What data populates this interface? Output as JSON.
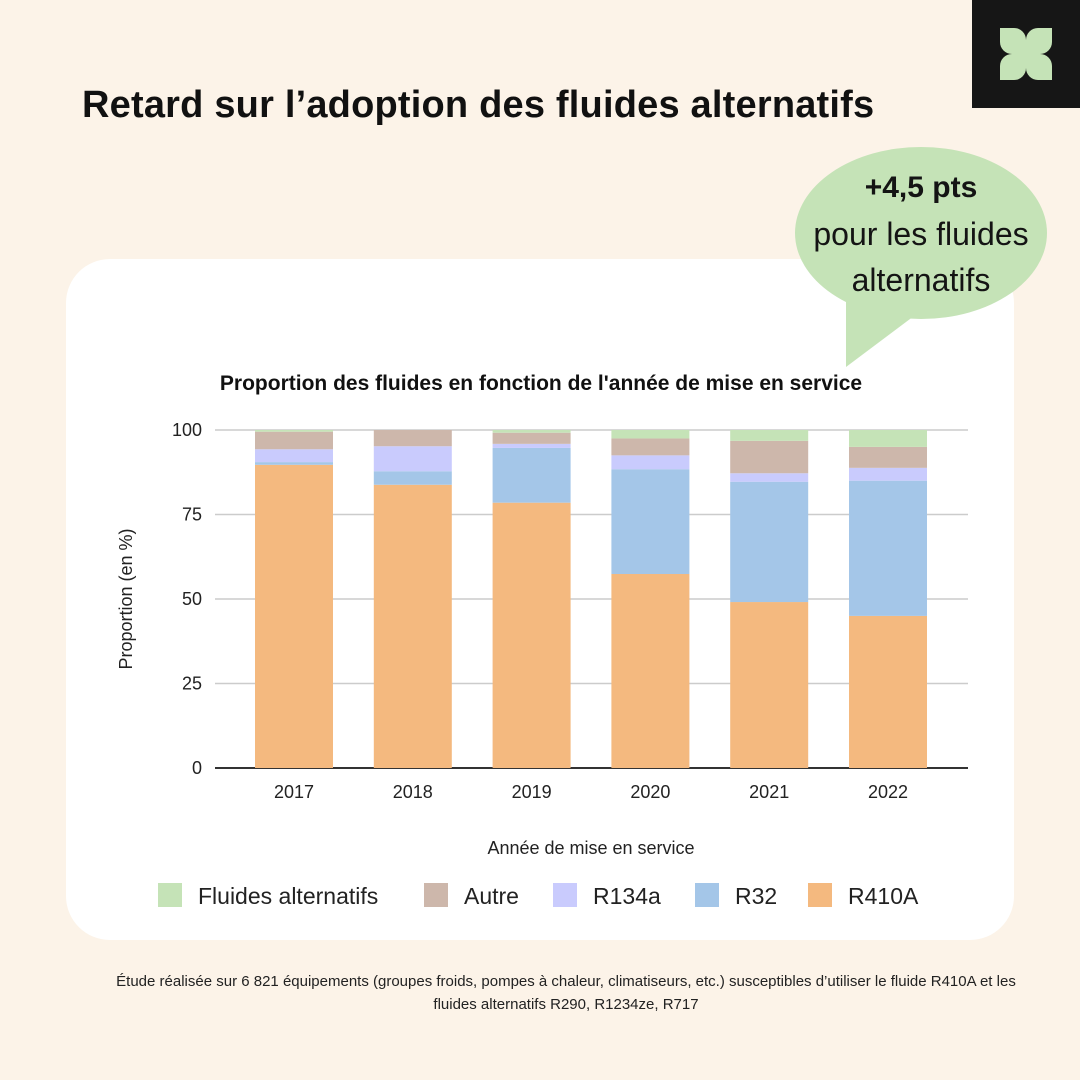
{
  "headline": "Retard sur l’adoption des fluides alternatifs",
  "logo": {
    "icon": "clover-logo-icon",
    "color": "#c5e3b7"
  },
  "bubble": {
    "big": "+4,5 pts",
    "line1": "pour les fluides",
    "line2": "alternatifs",
    "color": "#c5e3b7"
  },
  "footnote": "Étude réalisée sur 6 821 équipements (groupes froids, pompes à chaleur, climatiseurs, etc.) susceptibles d’utiliser le fluide R410A et les fluides alternatifs R290, R1234ze, R717",
  "chart_data": {
    "type": "bar",
    "stacked": true,
    "title": "Proportion des fluides en fonction de l'année de mise en service",
    "xlabel": "Année de mise en service",
    "ylabel": "Proportion (en %)",
    "ylim": [
      0,
      100
    ],
    "yticks": [
      0,
      25,
      50,
      75,
      100
    ],
    "grid": true,
    "legend_position": "bottom",
    "categories": [
      "2017",
      "2018",
      "2019",
      "2020",
      "2021",
      "2022"
    ],
    "series": [
      {
        "name": "R410A",
        "color": "#f4b97f",
        "values": [
          89.7,
          83.8,
          78.5,
          57.4,
          49.1,
          45.0
        ]
      },
      {
        "name": "R32",
        "color": "#a4c6e8",
        "values": [
          0.8,
          4.0,
          16.2,
          31.0,
          35.6,
          40.0
        ]
      },
      {
        "name": "R134a",
        "color": "#c9cbfd",
        "values": [
          3.8,
          7.4,
          1.2,
          4.1,
          2.5,
          3.8
        ]
      },
      {
        "name": "Autre",
        "color": "#cdb7ab",
        "values": [
          5.2,
          4.8,
          3.3,
          5.0,
          9.6,
          6.2
        ]
      },
      {
        "name": "Fluides alternatifs",
        "color": "#c5e3b7",
        "values": [
          0.5,
          0.0,
          0.8,
          2.5,
          3.2,
          5.0
        ]
      }
    ],
    "legend_order": [
      "Fluides alternatifs",
      "Autre",
      "R134a",
      "R32",
      "R410A"
    ]
  }
}
